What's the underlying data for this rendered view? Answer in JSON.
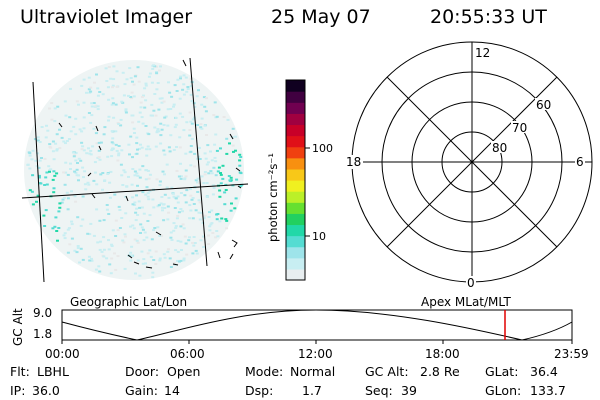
{
  "header": {
    "instrument": "Ultraviolet Imager",
    "date": "25 May 07",
    "time": "20:55:33 UT"
  },
  "image_panel": {
    "caption": "Geographic Lat/Lon"
  },
  "colorbar": {
    "unit_label": "photon cm⁻²s⁻¹",
    "ticks": [
      {
        "label": "100",
        "value": 100
      },
      {
        "label": "10",
        "value": 10
      }
    ],
    "colors": [
      "#e8eef0",
      "#c8eef2",
      "#9ee4ea",
      "#55dcd2",
      "#22d8a8",
      "#22d060",
      "#66e030",
      "#bbf028",
      "#f0f020",
      "#f8c818",
      "#f89010",
      "#f04010",
      "#e01018",
      "#c80028",
      "#a00040",
      "#700050",
      "#400040",
      "#100020"
    ]
  },
  "polar": {
    "caption": "Apex MLat/MLT",
    "mlt_labels": {
      "top": "12",
      "left": "18",
      "right": "6",
      "bottom": "0"
    },
    "lat_labels": [
      "60",
      "70",
      "80"
    ]
  },
  "timeline": {
    "ylabel": "GC Alt",
    "ymax": "9.0",
    "ymin": "1.8",
    "ticks": [
      "00:00",
      "06:00",
      "12:00",
      "18:00",
      "23:59"
    ],
    "marker_time": "20:55:33"
  },
  "footer": {
    "flt_label": "Flt:",
    "flt_value": "LBHL",
    "ip_label": "IP:",
    "ip_value": "36.0",
    "door_label": "Door:",
    "door_value": "Open",
    "gain_label": "Gain:",
    "gain_value": "14",
    "mode_label": "Mode:",
    "mode_value": "Normal",
    "dsp_label": "Dsp:",
    "dsp_value": "1.7",
    "gcalt_label": "GC Alt:",
    "gcalt_value": "2.8 Re",
    "seq_label": "Seq:",
    "seq_value": "39",
    "glat_label": "GLat:",
    "glat_value": "36.4",
    "glon_label": "GLon:",
    "glon_value": "133.7"
  }
}
